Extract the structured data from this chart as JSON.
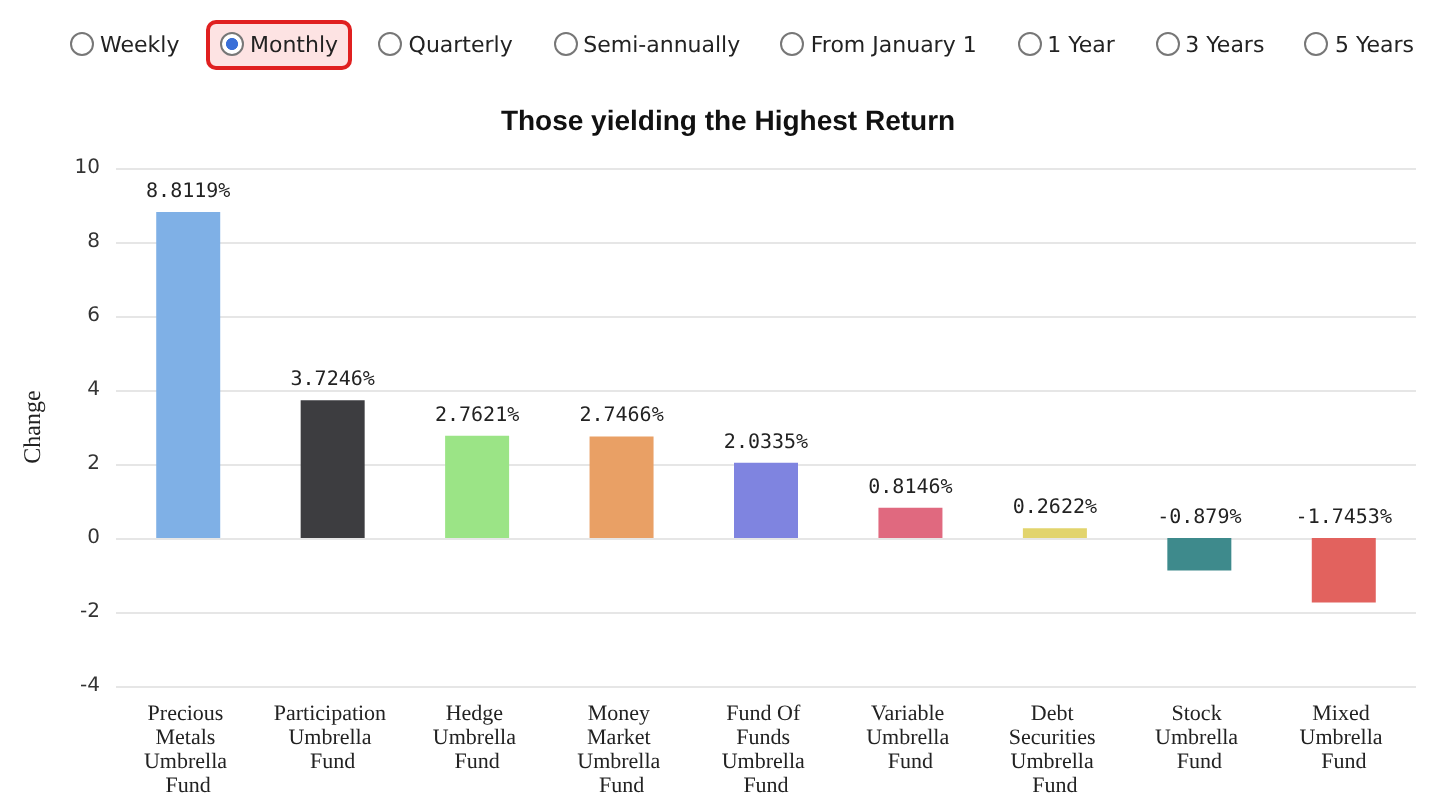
{
  "chart_data": {
    "type": "bar",
    "title": "Those yielding the Highest Return",
    "ylabel": "Change",
    "annotations": [
      "Weekly",
      "Monthly",
      "Quarterly",
      "Semi-annually",
      "From January 1",
      "1 Year",
      "3 Years",
      "5 Years"
    ],
    "categories": [
      "Precious Metals Umbrella Fund",
      "Participation Umbrella Fund",
      "Hedge Umbrella Fund",
      "Money Market Umbrella Fund",
      "Fund Of Funds Umbrella Fund",
      "Variable Umbrella Fund",
      "Debt Securities Umbrella Fund",
      "Stock Umbrella Fund",
      "Mixed Umbrella Fund"
    ],
    "values": [
      8.8119,
      3.7246,
      2.7621,
      2.7466,
      2.0335,
      0.8146,
      0.2622,
      -0.879,
      -1.7453
    ],
    "value_labels": [
      "8.8119%",
      "3.7246%",
      "2.7621%",
      "2.7466%",
      "2.0335%",
      "0.8146%",
      "0.2622%",
      "-0.879%",
      "-1.7453%"
    ],
    "colors": [
      "#7fb0e6",
      "#3d3d40",
      "#9be486",
      "#e9a065",
      "#7f84e0",
      "#e0697f",
      "#e2d46d",
      "#3e8a8c",
      "#e2625e"
    ],
    "ylim": [
      -4,
      10
    ],
    "yticks": [
      -4,
      -2,
      0,
      2,
      4,
      6,
      8,
      10
    ],
    "grid": "y"
  }
}
